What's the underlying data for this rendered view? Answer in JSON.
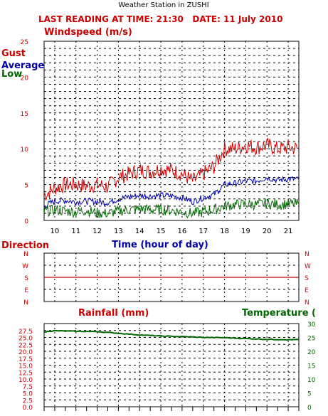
{
  "header": {
    "station_title": "Weather Station in ZUSHI",
    "reading_line": "LAST READING AT TIME: 21:30   DATE: 11 July 2010"
  },
  "colors": {
    "red": "#cc0000",
    "blue": "#0000aa",
    "green": "#006600",
    "grid": "#000000"
  },
  "chart_data": [
    {
      "type": "line",
      "title": "Windspeed (m/s)",
      "xlabel": "Time (hour of day)",
      "ylabel": "",
      "x_ticks": [
        "10",
        "11",
        "12",
        "13",
        "14",
        "15",
        "16",
        "17",
        "18",
        "19",
        "20",
        "21"
      ],
      "xlim": [
        9.5,
        21.5
      ],
      "ylim": [
        0,
        25
      ],
      "y_ticks": [
        "0",
        "5",
        "10",
        "15",
        "20",
        "25"
      ],
      "legend": [
        "Gust",
        "Average",
        "Low"
      ],
      "legend_placement": "left",
      "grid": true,
      "series": [
        {
          "name": "Gust",
          "color": "#cc0000",
          "x": [
            9.5,
            10.0,
            10.5,
            11.0,
            11.5,
            12.0,
            12.5,
            13.0,
            13.5,
            14.0,
            14.5,
            15.0,
            15.5,
            16.0,
            16.5,
            17.0,
            17.5,
            18.0,
            18.5,
            19.0,
            19.5,
            20.0,
            20.5,
            21.0,
            21.5
          ],
          "values": [
            3.5,
            4.5,
            5.0,
            5.0,
            4.8,
            5.0,
            4.7,
            6.0,
            6.5,
            7.0,
            6.8,
            7.2,
            7.0,
            6.5,
            5.5,
            6.5,
            7.5,
            10.0,
            10.0,
            10.5,
            10.2,
            10.5,
            10.0,
            10.2,
            10.0
          ]
        },
        {
          "name": "Average",
          "color": "#0000aa",
          "x": [
            9.5,
            10.0,
            10.5,
            11.0,
            11.5,
            12.0,
            12.5,
            13.0,
            13.5,
            14.0,
            14.5,
            15.0,
            15.5,
            16.0,
            16.5,
            17.0,
            17.5,
            18.0,
            18.5,
            19.0,
            19.5,
            20.0,
            20.5,
            21.0,
            21.5
          ],
          "values": [
            2.0,
            2.7,
            2.8,
            2.6,
            2.7,
            2.6,
            2.5,
            3.0,
            3.3,
            3.5,
            3.4,
            3.5,
            3.4,
            3.2,
            2.6,
            3.2,
            3.6,
            5.0,
            5.2,
            5.5,
            5.5,
            6.0,
            5.6,
            5.8,
            5.7
          ]
        },
        {
          "name": "Low",
          "color": "#006600",
          "x": [
            9.5,
            10.0,
            10.5,
            11.0,
            11.5,
            12.0,
            12.5,
            13.0,
            13.5,
            14.0,
            14.5,
            15.0,
            15.5,
            16.0,
            16.5,
            17.0,
            17.5,
            18.0,
            18.5,
            19.0,
            19.5,
            20.0,
            20.5,
            21.0,
            21.5
          ],
          "values": [
            1.2,
            1.5,
            1.3,
            1.2,
            1.4,
            1.0,
            1.0,
            1.3,
            1.5,
            1.6,
            1.5,
            1.5,
            1.4,
            1.2,
            1.0,
            1.2,
            1.5,
            2.0,
            2.2,
            2.3,
            2.2,
            2.4,
            2.2,
            2.3,
            2.3
          ]
        }
      ]
    },
    {
      "type": "line",
      "title": "Direction",
      "ylabel": "",
      "y_ticks": [
        "N",
        "W",
        "S",
        "E",
        "N"
      ],
      "ylim": [
        0,
        4
      ],
      "grid": true,
      "series": [
        {
          "name": "Direction",
          "color": "#cc0000",
          "x": [
            9.5,
            10.0,
            11.0,
            12.0,
            13.0,
            14.0,
            15.0,
            16.0,
            17.0,
            18.0,
            19.0,
            20.0,
            21.5
          ],
          "values": [
            2,
            2,
            2,
            2,
            2,
            2,
            2,
            2,
            2,
            2,
            2,
            2,
            2
          ]
        }
      ]
    },
    {
      "type": "line",
      "title": "Rainfall (mm)",
      "ylim": [
        0,
        30
      ],
      "y_ticks": [
        "0.0",
        "2.5",
        "5.0",
        "7.5",
        "10.0",
        "12.5",
        "15.0",
        "17.5",
        "20.0",
        "22.5",
        "25.0",
        "27.5"
      ],
      "y_ticks_right": [
        "0",
        "5",
        "10",
        "15",
        "20",
        "25",
        "30"
      ],
      "secondary_title": "Temperature (",
      "grid": true,
      "series": [
        {
          "name": "Temperature",
          "color": "#006600",
          "x": [
            9.5,
            10.0,
            11.0,
            12.0,
            13.0,
            14.0,
            15.0,
            16.0,
            17.0,
            18.0,
            19.0,
            20.0,
            21.0,
            21.5
          ],
          "values": [
            27.0,
            27.4,
            27.2,
            27.1,
            26.5,
            25.9,
            25.5,
            25.3,
            25.0,
            24.9,
            24.6,
            24.3,
            24.2,
            24.2
          ]
        }
      ]
    }
  ]
}
